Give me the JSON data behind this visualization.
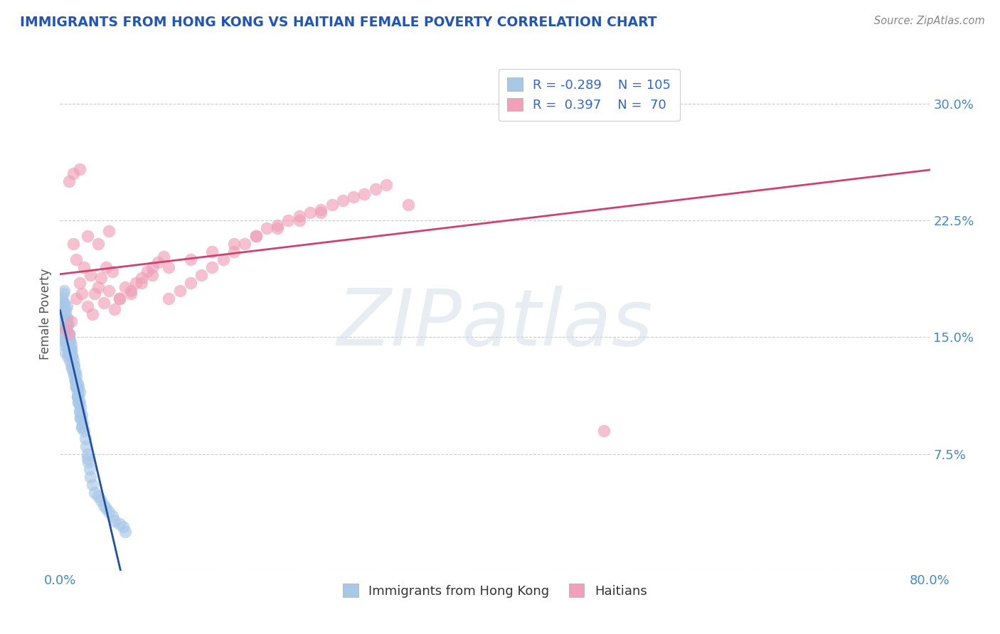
{
  "title": "IMMIGRANTS FROM HONG KONG VS HAITIAN FEMALE POVERTY CORRELATION CHART",
  "source": "Source: ZipAtlas.com",
  "ylabel": "Female Poverty",
  "xmin": 0.0,
  "xmax": 0.8,
  "ymin": 0.0,
  "ymax": 0.33,
  "yticks": [
    0.0,
    0.075,
    0.15,
    0.225,
    0.3
  ],
  "ytick_labels": [
    "",
    "7.5%",
    "15.0%",
    "22.5%",
    "30.0%"
  ],
  "xticks": [
    0.0,
    0.8
  ],
  "xtick_labels": [
    "0.0%",
    "80.0%"
  ],
  "legend1_R": "-0.289",
  "legend1_N": "105",
  "legend2_R": "0.397",
  "legend2_N": "70",
  "blue_color": "#a8c8e8",
  "pink_color": "#f0a0b8",
  "blue_line_color": "#2050a0",
  "pink_line_color": "#d04070",
  "blue_dash_color": "#c0c8d8",
  "watermark_text": "ZIPatlas",
  "legend_label1": "Immigrants from Hong Kong",
  "legend_label2": "Haitians",
  "title_color": "#2255bb",
  "source_color": "#888888",
  "grid_color": "#cccccc",
  "blue_scatter_x": [
    0.001,
    0.002,
    0.002,
    0.003,
    0.003,
    0.003,
    0.004,
    0.004,
    0.004,
    0.005,
    0.005,
    0.005,
    0.005,
    0.006,
    0.006,
    0.006,
    0.007,
    0.007,
    0.007,
    0.008,
    0.008,
    0.008,
    0.009,
    0.009,
    0.01,
    0.01,
    0.01,
    0.011,
    0.011,
    0.012,
    0.012,
    0.013,
    0.013,
    0.014,
    0.014,
    0.015,
    0.015,
    0.016,
    0.016,
    0.017,
    0.017,
    0.018,
    0.018,
    0.019,
    0.02,
    0.021,
    0.022,
    0.023,
    0.024,
    0.025,
    0.026,
    0.027,
    0.028,
    0.03,
    0.032,
    0.035,
    0.038,
    0.04,
    0.042,
    0.045,
    0.048,
    0.05,
    0.055,
    0.058,
    0.06,
    0.002,
    0.003,
    0.004,
    0.004,
    0.005,
    0.006,
    0.006,
    0.007,
    0.008,
    0.009,
    0.01,
    0.011,
    0.012,
    0.013,
    0.014,
    0.015,
    0.016,
    0.017,
    0.018,
    0.019,
    0.02,
    0.003,
    0.004,
    0.005,
    0.006,
    0.007,
    0.008,
    0.009,
    0.01,
    0.011,
    0.012,
    0.013,
    0.014,
    0.015,
    0.016,
    0.017,
    0.018,
    0.019,
    0.02,
    0.025
  ],
  "blue_scatter_y": [
    0.16,
    0.155,
    0.17,
    0.148,
    0.165,
    0.158,
    0.152,
    0.162,
    0.145,
    0.148,
    0.155,
    0.16,
    0.14,
    0.15,
    0.145,
    0.158,
    0.143,
    0.152,
    0.138,
    0.148,
    0.14,
    0.145,
    0.135,
    0.142,
    0.138,
    0.132,
    0.145,
    0.13,
    0.138,
    0.128,
    0.135,
    0.125,
    0.132,
    0.122,
    0.128,
    0.118,
    0.125,
    0.115,
    0.12,
    0.112,
    0.118,
    0.108,
    0.115,
    0.105,
    0.1,
    0.095,
    0.09,
    0.085,
    0.08,
    0.075,
    0.07,
    0.065,
    0.06,
    0.055,
    0.05,
    0.048,
    0.045,
    0.042,
    0.04,
    0.038,
    0.035,
    0.032,
    0.03,
    0.028,
    0.025,
    0.175,
    0.172,
    0.168,
    0.18,
    0.165,
    0.17,
    0.162,
    0.158,
    0.152,
    0.148,
    0.142,
    0.138,
    0.132,
    0.128,
    0.122,
    0.118,
    0.112,
    0.108,
    0.102,
    0.098,
    0.092,
    0.178,
    0.172,
    0.168,
    0.162,
    0.158,
    0.152,
    0.148,
    0.142,
    0.138,
    0.132,
    0.128,
    0.122,
    0.118,
    0.112,
    0.108,
    0.102,
    0.098,
    0.092,
    0.072
  ],
  "pink_scatter_x": [
    0.005,
    0.008,
    0.01,
    0.012,
    0.015,
    0.015,
    0.018,
    0.02,
    0.022,
    0.025,
    0.028,
    0.03,
    0.032,
    0.035,
    0.038,
    0.04,
    0.042,
    0.045,
    0.048,
    0.05,
    0.055,
    0.06,
    0.065,
    0.07,
    0.075,
    0.08,
    0.085,
    0.09,
    0.095,
    0.1,
    0.11,
    0.12,
    0.13,
    0.14,
    0.15,
    0.16,
    0.17,
    0.18,
    0.19,
    0.2,
    0.21,
    0.22,
    0.23,
    0.24,
    0.25,
    0.26,
    0.27,
    0.28,
    0.29,
    0.3,
    0.008,
    0.012,
    0.018,
    0.025,
    0.035,
    0.045,
    0.055,
    0.065,
    0.075,
    0.085,
    0.1,
    0.12,
    0.14,
    0.16,
    0.18,
    0.2,
    0.22,
    0.24,
    0.5,
    0.32
  ],
  "pink_scatter_y": [
    0.155,
    0.152,
    0.16,
    0.21,
    0.2,
    0.175,
    0.185,
    0.178,
    0.195,
    0.17,
    0.19,
    0.165,
    0.178,
    0.182,
    0.188,
    0.172,
    0.195,
    0.18,
    0.192,
    0.168,
    0.175,
    0.182,
    0.178,
    0.185,
    0.188,
    0.192,
    0.195,
    0.198,
    0.202,
    0.175,
    0.18,
    0.185,
    0.19,
    0.195,
    0.2,
    0.205,
    0.21,
    0.215,
    0.22,
    0.222,
    0.225,
    0.228,
    0.23,
    0.232,
    0.235,
    0.238,
    0.24,
    0.242,
    0.245,
    0.248,
    0.25,
    0.255,
    0.258,
    0.215,
    0.21,
    0.218,
    0.175,
    0.18,
    0.185,
    0.19,
    0.195,
    0.2,
    0.205,
    0.21,
    0.215,
    0.22,
    0.225,
    0.23,
    0.09,
    0.235
  ]
}
